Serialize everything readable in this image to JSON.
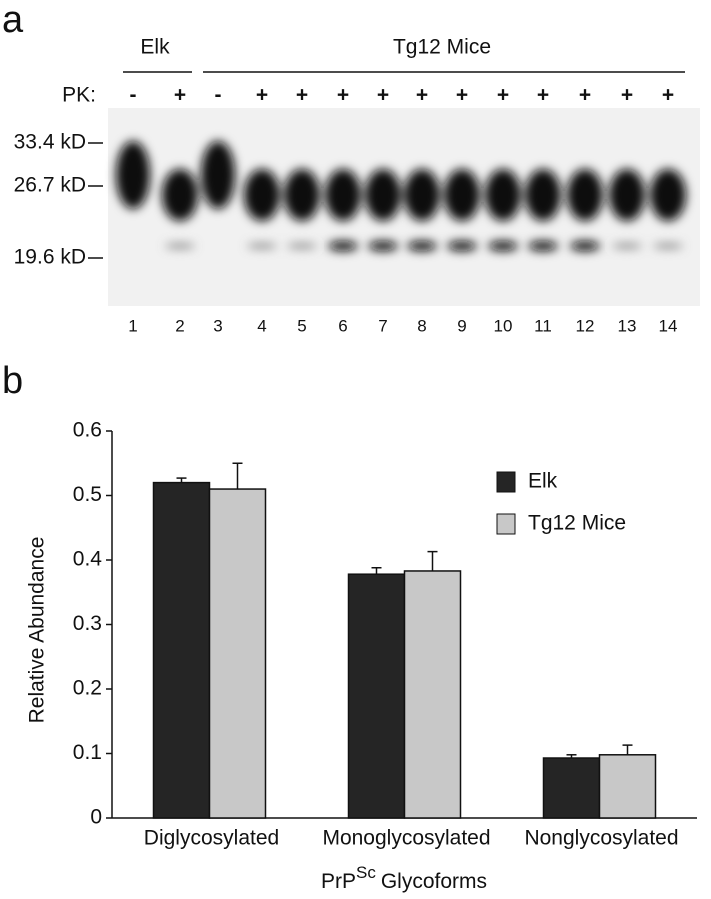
{
  "panel_a": {
    "label": "a",
    "groups": [
      "Elk",
      "Tg12 Mice"
    ],
    "pk_label": "PK:",
    "markers": [
      "33.4 kD",
      "26.7 kD",
      "19.6 kD"
    ],
    "lanes": [
      {
        "number": 1,
        "pk": "-"
      },
      {
        "number": 2,
        "pk": "+"
      },
      {
        "number": 3,
        "pk": "-"
      },
      {
        "number": 4,
        "pk": "+"
      },
      {
        "number": 5,
        "pk": "+"
      },
      {
        "number": 6,
        "pk": "+"
      },
      {
        "number": 7,
        "pk": "+"
      },
      {
        "number": 8,
        "pk": "+"
      },
      {
        "number": 9,
        "pk": "+"
      },
      {
        "number": 10,
        "pk": "+"
      },
      {
        "number": 11,
        "pk": "+"
      },
      {
        "number": 12,
        "pk": "+"
      },
      {
        "number": 13,
        "pk": "+"
      },
      {
        "number": 14,
        "pk": "+"
      }
    ]
  },
  "chart_data": {
    "type": "bar",
    "panel_label": "b",
    "y_label": "Relative Abundance",
    "x_label": {
      "text": "PrP",
      "superscript": "Sc",
      "suffix": "Glycoforms"
    },
    "categories": [
      "Diglycosylated",
      "Monoglycosylated",
      "Nonglycosylated"
    ],
    "series": [
      {
        "name": "Elk",
        "color": "#252525",
        "values": [
          0.52,
          0.378,
          0.093
        ],
        "errors": [
          0.007,
          0.01,
          0.005
        ]
      },
      {
        "name": "Tg12 Mice",
        "color": "#c8c8c8",
        "values": [
          0.51,
          0.383,
          0.098
        ],
        "errors": [
          0.04,
          0.03,
          0.015
        ]
      }
    ],
    "ylim": [
      0,
      0.6
    ],
    "yticks": [
      0,
      0.1,
      0.2,
      0.3,
      0.4,
      0.5,
      0.6
    ],
    "legend": "upper-right"
  }
}
